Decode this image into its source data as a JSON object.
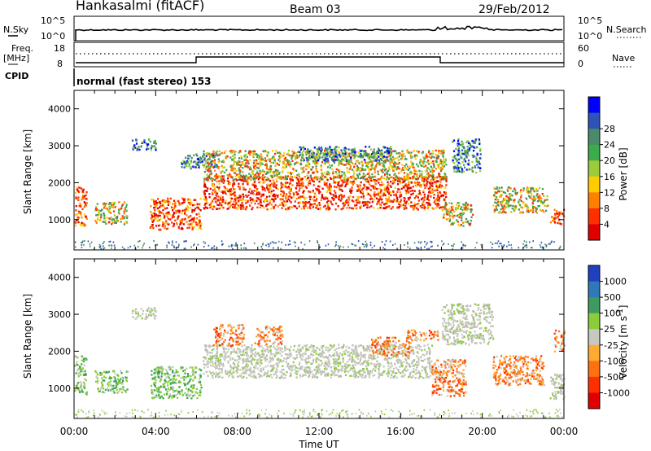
{
  "header": {
    "station": "Hankasalmi (fitACF)",
    "beam": "Beam 03",
    "date": "29/Feb/2012"
  },
  "status": {
    "nsky_label": "N.Sky",
    "nsky_ticks": [
      "10^5",
      "10^0"
    ],
    "nsearch_label": "N.Search",
    "nsearch_ticks": [
      "10^5",
      "10^0"
    ],
    "freq_label": "Freq.",
    "freq_unit": "[MHz]",
    "freq_ticks": [
      "18",
      "8"
    ],
    "nave_label": "Nave",
    "nave_ticks": [
      "60",
      "0"
    ],
    "cpid_label": "CPID",
    "cpid_value": "normal (fast stereo) 153"
  },
  "chart_data": [
    {
      "type": "heatmap",
      "name": "power",
      "ylabel": "Slant Range [km]",
      "ylim": [
        180,
        4500
      ],
      "yticks": [
        "1000",
        "2000",
        "3000",
        "4000"
      ],
      "xlim_hours": [
        0,
        24
      ],
      "colorbar": {
        "label": "Power [dB]",
        "ticks": [
          "4",
          "8",
          "12",
          "16",
          "20",
          "24",
          "28"
        ],
        "colors": [
          "#0000ff",
          "#2c54b8",
          "#4a8a6a",
          "#3cab4a",
          "#9ccc3c",
          "#ffcc00",
          "#ff8000",
          "#ff3000",
          "#e00000"
        ]
      },
      "echo_regions": [
        {
          "t": [
            0.0,
            0.6
          ],
          "r": [
            850,
            1900
          ],
          "level": "strong"
        },
        {
          "t": [
            1.0,
            2.6
          ],
          "r": [
            900,
            1500
          ],
          "level": "mixed"
        },
        {
          "t": [
            2.8,
            4.0
          ],
          "r": [
            2900,
            3200
          ],
          "level": "weak"
        },
        {
          "t": [
            3.7,
            6.2
          ],
          "r": [
            750,
            1600
          ],
          "level": "strong"
        },
        {
          "t": [
            5.2,
            7.0
          ],
          "r": [
            2400,
            2800
          ],
          "level": "weak"
        },
        {
          "t": [
            6.3,
            18.2
          ],
          "r": [
            1300,
            2200
          ],
          "level": "strong"
        },
        {
          "t": [
            6.3,
            18.2
          ],
          "r": [
            2100,
            2900
          ],
          "level": "mixed"
        },
        {
          "t": [
            11.0,
            15.5
          ],
          "r": [
            2600,
            3000
          ],
          "level": "weak"
        },
        {
          "t": [
            18.0,
            19.5
          ],
          "r": [
            850,
            1500
          ],
          "level": "mixed"
        },
        {
          "t": [
            18.5,
            19.9
          ],
          "r": [
            2300,
            3200
          ],
          "level": "weak"
        },
        {
          "t": [
            20.5,
            23.2
          ],
          "r": [
            1200,
            1900
          ],
          "level": "mixed"
        },
        {
          "t": [
            23.3,
            24.0
          ],
          "r": [
            900,
            1300
          ],
          "level": "strong"
        }
      ]
    },
    {
      "type": "heatmap",
      "name": "velocity",
      "ylabel": "Slant Range [km]",
      "ylim": [
        180,
        4500
      ],
      "yticks": [
        "1000",
        "2000",
        "3000",
        "4000"
      ],
      "xlabel": "Time UT",
      "xticks": [
        "00:00",
        "04:00",
        "08:00",
        "12:00",
        "16:00",
        "20:00",
        "00:00"
      ],
      "xlim_hours": [
        0,
        24
      ],
      "colorbar": {
        "label": "Velocity [m s",
        "label_sup": "-1",
        "label_end": "]",
        "ticks": [
          "1000",
          "500",
          "100",
          "25",
          "-25",
          "-100",
          "-500",
          "-1000"
        ],
        "colors": [
          "#2040c0",
          "#2e7ab8",
          "#3e9a5e",
          "#8acc3c",
          "#c8c8c0",
          "#ffaa30",
          "#ff7010",
          "#ff3000",
          "#e00000"
        ]
      },
      "echo_regions": [
        {
          "t": [
            0.0,
            0.6
          ],
          "r": [
            850,
            1900
          ],
          "level": "green"
        },
        {
          "t": [
            1.0,
            2.6
          ],
          "r": [
            900,
            1500
          ],
          "level": "green"
        },
        {
          "t": [
            2.8,
            4.0
          ],
          "r": [
            2900,
            3200
          ],
          "level": "grey"
        },
        {
          "t": [
            3.7,
            6.2
          ],
          "r": [
            750,
            1600
          ],
          "level": "green"
        },
        {
          "t": [
            6.3,
            11.5
          ],
          "r": [
            1300,
            2200
          ],
          "level": "grey"
        },
        {
          "t": [
            6.8,
            8.3
          ],
          "r": [
            2150,
            2750
          ],
          "level": "orange"
        },
        {
          "t": [
            8.8,
            10.2
          ],
          "r": [
            2200,
            2700
          ],
          "level": "orange"
        },
        {
          "t": [
            11.5,
            17.5
          ],
          "r": [
            1300,
            2200
          ],
          "level": "grey"
        },
        {
          "t": [
            14.5,
            16.5
          ],
          "r": [
            1900,
            2400
          ],
          "level": "orange"
        },
        {
          "t": [
            16.3,
            17.8
          ],
          "r": [
            2300,
            2600
          ],
          "level": "orange"
        },
        {
          "t": [
            17.5,
            19.2
          ],
          "r": [
            800,
            1800
          ],
          "level": "orange"
        },
        {
          "t": [
            18.0,
            20.5
          ],
          "r": [
            2200,
            3300
          ],
          "level": "grey"
        },
        {
          "t": [
            20.5,
            23.0
          ],
          "r": [
            1100,
            1900
          ],
          "level": "orange"
        },
        {
          "t": [
            23.3,
            24.0
          ],
          "r": [
            700,
            1400
          ],
          "level": "grey"
        },
        {
          "t": [
            23.5,
            24.0
          ],
          "r": [
            2000,
            2600
          ],
          "level": "orange"
        }
      ]
    }
  ]
}
